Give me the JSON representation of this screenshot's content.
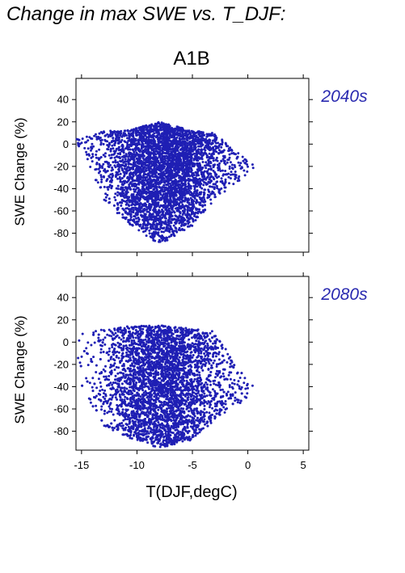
{
  "title": "Change in max SWE vs. T_DJF:",
  "colors": {
    "points": "#1f1fb4",
    "period_label": "#2a2ab0",
    "axis": "#000000"
  },
  "chart_data": {
    "type": "scatter",
    "scenario": "A1B",
    "xlabel": "T(DJF,degC)",
    "ylabel": "SWE Change (%)",
    "xlim": [
      -15.5,
      5.5
    ],
    "ylim": [
      -97,
      59
    ],
    "xticks": [
      -15,
      -10,
      -5,
      0,
      5
    ],
    "yticks": [
      -80,
      -60,
      -40,
      -20,
      0,
      20,
      40
    ],
    "grid": false,
    "panels": [
      {
        "period": "2040s",
        "point_count_hint": 4000,
        "x_range": [
          -15.5,
          0.5
        ],
        "y_range": [
          -90,
          22
        ],
        "approx_y_range_by_x": [
          {
            "x": -15,
            "ymin": -5,
            "ymax": 5
          },
          {
            "x": -13,
            "ymin": -50,
            "ymax": 12
          },
          {
            "x": -11,
            "ymin": -70,
            "ymax": 12
          },
          {
            "x": -8,
            "ymin": -90,
            "ymax": 20
          },
          {
            "x": -5,
            "ymin": -75,
            "ymax": 12
          },
          {
            "x": -3,
            "ymin": -50,
            "ymax": 10
          },
          {
            "x": 0,
            "ymin": -30,
            "ymax": -15
          }
        ]
      },
      {
        "period": "2080s",
        "point_count_hint": 4000,
        "x_range": [
          -15.5,
          0.5
        ],
        "y_range": [
          -95,
          15
        ],
        "approx_y_range_by_x": [
          {
            "x": -15,
            "ymin": -40,
            "ymax": 10
          },
          {
            "x": -13,
            "ymin": -75,
            "ymax": 12
          },
          {
            "x": -11,
            "ymin": -85,
            "ymax": 14
          },
          {
            "x": -8,
            "ymin": -95,
            "ymax": 15
          },
          {
            "x": -5,
            "ymin": -88,
            "ymax": 12
          },
          {
            "x": -3,
            "ymin": -70,
            "ymax": 10
          },
          {
            "x": 0,
            "ymin": -50,
            "ymax": -35
          }
        ]
      }
    ]
  }
}
